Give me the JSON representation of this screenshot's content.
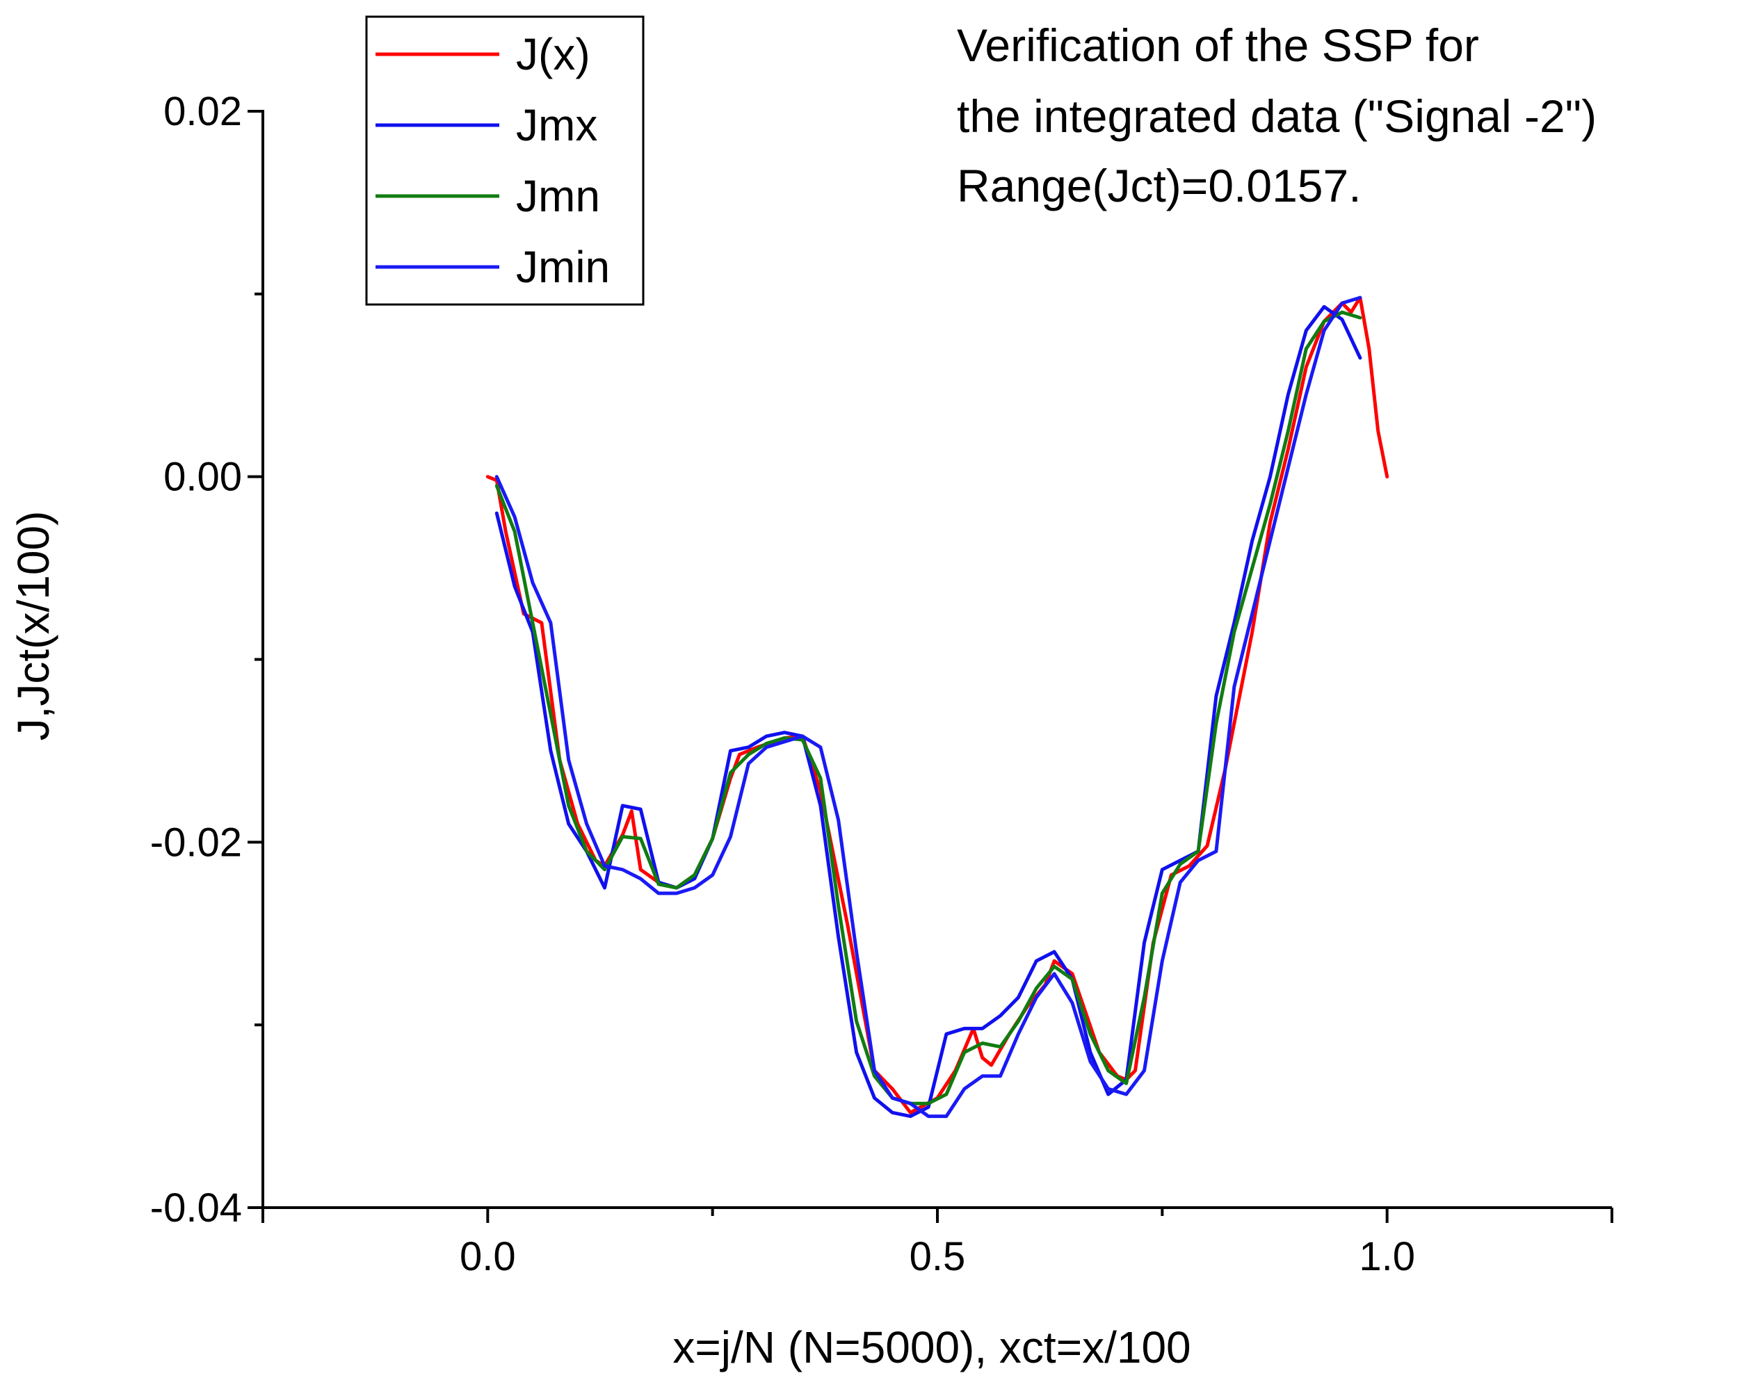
{
  "chart_data": {
    "type": "line",
    "title": "",
    "annotation": [
      "Verification of the SSP for",
      "the integrated data (\"Signal -2\")",
      "Range(Jct)=0.0157."
    ],
    "xlabel": "x=j/N (N=5000), xct=x/100",
    "ylabel": "J,Jct(x/100)",
    "xlim": [
      -0.25,
      1.25
    ],
    "ylim": [
      -0.04,
      0.02
    ],
    "xticks": [
      0.0,
      0.5,
      1.0
    ],
    "xtick_labels": [
      "0.0",
      "0.5",
      "1.0"
    ],
    "yticks": [
      -0.04,
      -0.02,
      0.0,
      0.02
    ],
    "ytick_labels": [
      "-0.04",
      "-0.02",
      "0.00",
      "0.02"
    ],
    "grid": false,
    "legend_position": "top-left",
    "series": [
      {
        "name": "J(x)",
        "color": "#ff0000",
        "x": [
          0.0,
          0.01,
          0.02,
          0.04,
          0.06,
          0.08,
          0.1,
          0.12,
          0.13,
          0.15,
          0.16,
          0.17,
          0.19,
          0.21,
          0.23,
          0.25,
          0.27,
          0.28,
          0.3,
          0.33,
          0.35,
          0.37,
          0.4,
          0.43,
          0.45,
          0.47,
          0.5,
          0.52,
          0.54,
          0.55,
          0.56,
          0.58,
          0.6,
          0.62,
          0.63,
          0.65,
          0.68,
          0.7,
          0.71,
          0.72,
          0.74,
          0.76,
          0.78,
          0.8,
          0.82,
          0.85,
          0.87,
          0.89,
          0.91,
          0.93,
          0.95,
          0.96,
          0.97,
          0.98,
          0.99,
          1.0
        ],
        "y": [
          0.0,
          -0.0002,
          -0.003,
          -0.0075,
          -0.008,
          -0.0155,
          -0.019,
          -0.021,
          -0.0213,
          -0.0196,
          -0.0183,
          -0.0215,
          -0.0222,
          -0.0225,
          -0.0218,
          -0.0198,
          -0.0165,
          -0.0152,
          -0.0148,
          -0.0143,
          -0.0142,
          -0.0172,
          -0.0245,
          -0.0325,
          -0.0335,
          -0.0348,
          -0.034,
          -0.0325,
          -0.0302,
          -0.0318,
          -0.0322,
          -0.0305,
          -0.029,
          -0.0278,
          -0.0265,
          -0.0272,
          -0.0315,
          -0.0328,
          -0.033,
          -0.0325,
          -0.0255,
          -0.0218,
          -0.0213,
          -0.0202,
          -0.016,
          -0.0085,
          -0.0025,
          0.0015,
          0.006,
          0.0085,
          0.0095,
          0.009,
          0.0098,
          0.007,
          0.0025,
          0.0
        ]
      },
      {
        "name": "Jmx",
        "color": "#1010ee",
        "x": [
          0.01,
          0.03,
          0.05,
          0.07,
          0.09,
          0.11,
          0.13,
          0.15,
          0.17,
          0.19,
          0.21,
          0.23,
          0.25,
          0.27,
          0.29,
          0.31,
          0.33,
          0.35,
          0.37,
          0.39,
          0.41,
          0.43,
          0.45,
          0.47,
          0.49,
          0.51,
          0.53,
          0.55,
          0.57,
          0.59,
          0.61,
          0.63,
          0.65,
          0.67,
          0.69,
          0.71,
          0.73,
          0.75,
          0.77,
          0.79,
          0.81,
          0.83,
          0.85,
          0.87,
          0.89,
          0.91,
          0.93,
          0.95,
          0.97
        ],
        "y": [
          -0.002,
          -0.006,
          -0.0085,
          -0.015,
          -0.019,
          -0.0205,
          -0.0225,
          -0.018,
          -0.0182,
          -0.0222,
          -0.0225,
          -0.022,
          -0.0198,
          -0.015,
          -0.0148,
          -0.0142,
          -0.014,
          -0.0142,
          -0.018,
          -0.0252,
          -0.0315,
          -0.034,
          -0.0348,
          -0.035,
          -0.0345,
          -0.0305,
          -0.0302,
          -0.0302,
          -0.0295,
          -0.0285,
          -0.0265,
          -0.026,
          -0.0275,
          -0.0315,
          -0.0338,
          -0.033,
          -0.0255,
          -0.0215,
          -0.021,
          -0.0205,
          -0.012,
          -0.008,
          -0.0035,
          0.0,
          0.0045,
          0.008,
          0.0093,
          0.0086,
          0.0065
        ]
      },
      {
        "name": "Jmn",
        "color": "#117c11",
        "x": [
          0.01,
          0.03,
          0.05,
          0.07,
          0.09,
          0.11,
          0.13,
          0.15,
          0.17,
          0.19,
          0.21,
          0.23,
          0.25,
          0.27,
          0.29,
          0.31,
          0.33,
          0.35,
          0.37,
          0.39,
          0.41,
          0.43,
          0.45,
          0.47,
          0.49,
          0.51,
          0.53,
          0.55,
          0.57,
          0.59,
          0.61,
          0.63,
          0.65,
          0.67,
          0.69,
          0.71,
          0.73,
          0.75,
          0.77,
          0.79,
          0.81,
          0.83,
          0.85,
          0.87,
          0.89,
          0.91,
          0.93,
          0.95,
          0.97
        ],
        "y": [
          -0.0005,
          -0.003,
          -0.008,
          -0.013,
          -0.018,
          -0.0205,
          -0.0215,
          -0.0197,
          -0.0198,
          -0.0223,
          -0.0225,
          -0.0218,
          -0.0198,
          -0.0162,
          -0.0152,
          -0.0146,
          -0.0143,
          -0.0144,
          -0.0165,
          -0.0235,
          -0.0298,
          -0.0328,
          -0.034,
          -0.0343,
          -0.0343,
          -0.0338,
          -0.0315,
          -0.031,
          -0.0312,
          -0.0298,
          -0.028,
          -0.0268,
          -0.0275,
          -0.0305,
          -0.0325,
          -0.0332,
          -0.0285,
          -0.0228,
          -0.0212,
          -0.0205,
          -0.0135,
          -0.0085,
          -0.005,
          -0.0015,
          0.0025,
          0.007,
          0.0085,
          0.009,
          0.0087
        ]
      },
      {
        "name": "Jmin",
        "color": "#1a1af5",
        "x": [
          0.01,
          0.03,
          0.05,
          0.07,
          0.09,
          0.11,
          0.13,
          0.15,
          0.17,
          0.19,
          0.21,
          0.23,
          0.25,
          0.27,
          0.29,
          0.31,
          0.33,
          0.35,
          0.37,
          0.39,
          0.41,
          0.43,
          0.45,
          0.47,
          0.49,
          0.51,
          0.53,
          0.55,
          0.57,
          0.59,
          0.61,
          0.63,
          0.65,
          0.67,
          0.69,
          0.71,
          0.73,
          0.75,
          0.77,
          0.79,
          0.81,
          0.83,
          0.85,
          0.87,
          0.89,
          0.91,
          0.93,
          0.95,
          0.97
        ],
        "y": [
          0.0,
          -0.0022,
          -0.0058,
          -0.008,
          -0.0155,
          -0.019,
          -0.0213,
          -0.0215,
          -0.022,
          -0.0228,
          -0.0228,
          -0.0225,
          -0.0218,
          -0.0197,
          -0.0157,
          -0.0148,
          -0.0145,
          -0.0142,
          -0.0148,
          -0.0188,
          -0.026,
          -0.0325,
          -0.034,
          -0.0343,
          -0.035,
          -0.035,
          -0.0335,
          -0.0328,
          -0.0328,
          -0.0305,
          -0.0285,
          -0.0272,
          -0.0288,
          -0.032,
          -0.0335,
          -0.0338,
          -0.0325,
          -0.0265,
          -0.0222,
          -0.021,
          -0.0205,
          -0.0115,
          -0.0075,
          -0.0035,
          0.0005,
          0.0045,
          0.008,
          0.0095,
          0.0098
        ]
      }
    ]
  }
}
